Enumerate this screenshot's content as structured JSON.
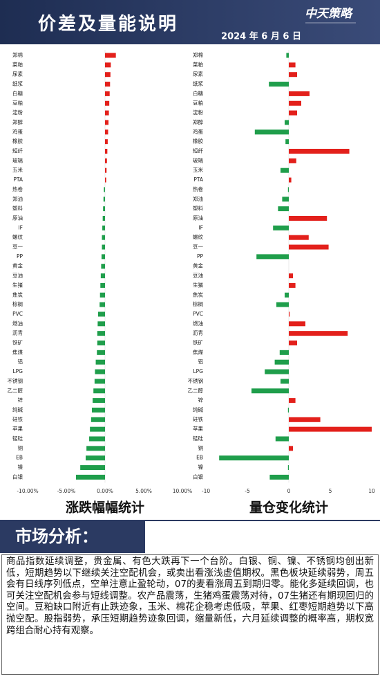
{
  "header": {
    "title": "价差及量能说明",
    "date": "2024 年 6 月 6 日",
    "logo": "中天策略"
  },
  "chart_data": [
    {
      "type": "bar",
      "orientation": "horizontal",
      "title": "涨跌幅幅统计",
      "categories": [
        "郑棉",
        "菜粕",
        "尿素",
        "纸浆",
        "白糖",
        "豆粕",
        "淀粉",
        "郑醇",
        "鸡蛋",
        "橡胶",
        "短纤",
        "玻璃",
        "玉米",
        "PTA",
        "热卷",
        "郑油",
        "塑料",
        "原油",
        "IF",
        "螺纹",
        "豆一",
        "PP",
        "黄金",
        "豆油",
        "生猪",
        "焦炭",
        "棕榈",
        "PVC",
        "燃油",
        "沥青",
        "铁矿",
        "焦煤",
        "铝",
        "LPG",
        "不锈钢",
        "乙二醇",
        "锌",
        "纯碱",
        "硅铁",
        "苹果",
        "锰硅",
        "铜",
        "EB",
        "镍",
        "白银"
      ],
      "values": [
        1.4,
        0.75,
        0.7,
        0.65,
        0.6,
        0.55,
        0.5,
        0.45,
        0.4,
        0.35,
        0.3,
        0.25,
        0.2,
        0.15,
        -0.15,
        -0.2,
        -0.25,
        -0.3,
        -0.35,
        -0.4,
        -0.4,
        -0.45,
        -0.5,
        -0.55,
        -0.6,
        -0.65,
        -0.7,
        -0.9,
        -0.95,
        -1.0,
        -1.0,
        -1.05,
        -1.2,
        -1.3,
        -1.35,
        -1.5,
        -1.6,
        -1.7,
        -1.8,
        -1.95,
        -2.05,
        -2.4,
        -2.5,
        -3.2,
        -3.75
      ],
      "positive_color": "#e3201b",
      "negative_color": "#1f9e4b",
      "xlim": [
        -10,
        10
      ],
      "xticks": [
        {
          "value": -10,
          "label": "-10.00%"
        },
        {
          "value": -5,
          "label": "-5.00%"
        },
        {
          "value": 0,
          "label": "0.00%"
        },
        {
          "value": 5,
          "label": "5.00%"
        },
        {
          "value": 10,
          "label": "10.00%"
        }
      ]
    },
    {
      "type": "bar",
      "orientation": "horizontal",
      "title": "量仓变化统计",
      "categories": [
        "郑棉",
        "菜粕",
        "尿素",
        "纸浆",
        "白糖",
        "豆粕",
        "淀粉",
        "郑醇",
        "鸡蛋",
        "橡胶",
        "短纤",
        "玻璃",
        "玉米",
        "PTA",
        "热卷",
        "郑油",
        "塑料",
        "原油",
        "IF",
        "螺纹",
        "豆一",
        "PP",
        "黄金",
        "豆油",
        "生猪",
        "焦炭",
        "棕榈",
        "PVC",
        "燃油",
        "沥青",
        "铁矿",
        "焦煤",
        "铝",
        "LPG",
        "不锈钢",
        "乙二醇",
        "锌",
        "纯碱",
        "硅铁",
        "苹果",
        "锰硅",
        "铜",
        "EB",
        "镍",
        "白银"
      ],
      "values": [
        -0.3,
        0.8,
        1.0,
        -2.4,
        2.5,
        1.5,
        1.0,
        -0.5,
        -4.1,
        -0.4,
        7.3,
        0.9,
        -1.0,
        0.3,
        -0.1,
        -0.8,
        -1.3,
        4.6,
        -1.9,
        2.4,
        4.8,
        -3.9,
        0.0,
        0.5,
        0.8,
        -0.5,
        -1.5,
        0.1,
        2.0,
        7.1,
        1.0,
        -1.1,
        -1.7,
        -2.9,
        -1.0,
        -4.5,
        0.8,
        -0.1,
        3.8,
        10.0,
        -1.6,
        0.5,
        -8.4,
        -0.1,
        -2.3
      ],
      "positive_color": "#e3201b",
      "negative_color": "#1f9e4b",
      "xlim": [
        -10,
        10
      ],
      "xticks": [
        -10,
        -5,
        0,
        5,
        10
      ]
    }
  ],
  "analysis": {
    "heading": "市场分析：",
    "text": "商品指数延续调整，贵金属、有色大跌再下一个台阶。白银、铜、镍、不锈钢均创出新低，短期趋势以下继续关注空配机会，或卖出看涨浅虚值期权。黑色板块延续弱势，周五会有日线序列低点，空单注意止盈轮动，07的麦看涨周五到期归零。能化多延续回调，也可关注空配机会参与短线调整。农产品震荡，生猪鸡蛋震荡对待，07生猪还有期现回归的空间。豆粕缺口附近有止跌迹象，玉米、棉花企稳考虑低吸，苹果、红枣短期趋势以下高抛空配。股指弱势，承压短期趋势迹象回调，缩量新低，六月延续调整的概率高，期权宽跨组合耐心持有观察。"
  }
}
